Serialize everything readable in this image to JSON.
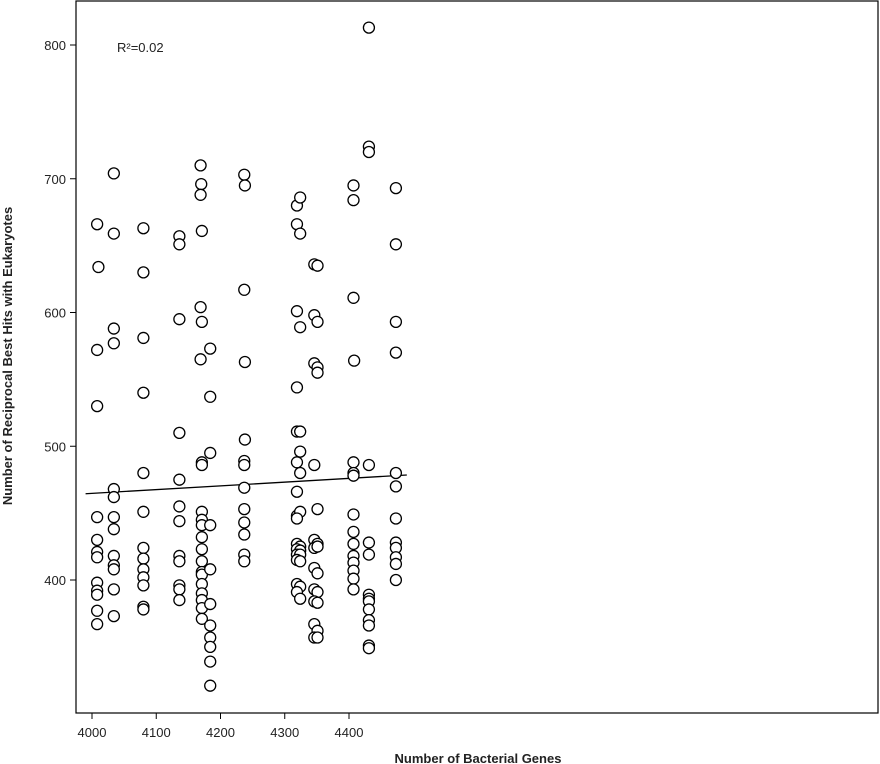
{
  "chart_data": {
    "type": "scatter",
    "title": "",
    "xlabel": "Number of Bacterial Genes",
    "ylabel": "Number of Reciprocal Best Hits with Eukaryotes",
    "xlim": [
      3990,
      4490
    ],
    "ylim": [
      300,
      830
    ],
    "x_ticks": [
      4000,
      4100,
      4200,
      4300,
      4400
    ],
    "y_ticks": [
      400,
      500,
      600,
      700,
      800
    ],
    "annotation": "R²=0.02",
    "grid": false,
    "marker": "open-circle",
    "trendline": {
      "x": [
        3990,
        4490
      ],
      "y": [
        464.5,
        478.5
      ]
    },
    "points": [
      [
        4008,
        666
      ],
      [
        4010,
        634
      ],
      [
        4008,
        572
      ],
      [
        4008,
        530
      ],
      [
        4008,
        447
      ],
      [
        4008,
        430
      ],
      [
        4008,
        421
      ],
      [
        4008,
        417
      ],
      [
        4008,
        398
      ],
      [
        4008,
        392
      ],
      [
        4008,
        389
      ],
      [
        4008,
        377
      ],
      [
        4008,
        367
      ],
      [
        4034,
        704
      ],
      [
        4034,
        659
      ],
      [
        4034,
        588
      ],
      [
        4034,
        577
      ],
      [
        4034,
        468
      ],
      [
        4034,
        462
      ],
      [
        4034,
        447
      ],
      [
        4034,
        438
      ],
      [
        4034,
        418
      ],
      [
        4034,
        411
      ],
      [
        4034,
        408
      ],
      [
        4034,
        393
      ],
      [
        4034,
        373
      ],
      [
        4080,
        663
      ],
      [
        4080,
        630
      ],
      [
        4080,
        581
      ],
      [
        4080,
        540
      ],
      [
        4080,
        480
      ],
      [
        4080,
        451
      ],
      [
        4080,
        424
      ],
      [
        4080,
        416
      ],
      [
        4080,
        408
      ],
      [
        4080,
        402
      ],
      [
        4080,
        396
      ],
      [
        4080,
        380
      ],
      [
        4080,
        378
      ],
      [
        4136,
        657
      ],
      [
        4136,
        651
      ],
      [
        4136,
        595
      ],
      [
        4136,
        510
      ],
      [
        4136,
        475
      ],
      [
        4136,
        455
      ],
      [
        4136,
        444
      ],
      [
        4136,
        418
      ],
      [
        4136,
        414
      ],
      [
        4136,
        396
      ],
      [
        4136,
        393
      ],
      [
        4136,
        385
      ],
      [
        4169,
        710
      ],
      [
        4170,
        696
      ],
      [
        4169,
        688
      ],
      [
        4171,
        661
      ],
      [
        4169,
        604
      ],
      [
        4171,
        593
      ],
      [
        4169,
        565
      ],
      [
        4171,
        488
      ],
      [
        4171,
        486
      ],
      [
        4171,
        451
      ],
      [
        4171,
        445
      ],
      [
        4171,
        441
      ],
      [
        4171,
        432
      ],
      [
        4171,
        423
      ],
      [
        4171,
        414
      ],
      [
        4171,
        406
      ],
      [
        4171,
        404
      ],
      [
        4171,
        397
      ],
      [
        4171,
        390
      ],
      [
        4171,
        385
      ],
      [
        4171,
        379
      ],
      [
        4171,
        371
      ],
      [
        4184,
        573
      ],
      [
        4184,
        537
      ],
      [
        4184,
        495
      ],
      [
        4184,
        441
      ],
      [
        4184,
        408
      ],
      [
        4184,
        382
      ],
      [
        4184,
        366
      ],
      [
        4184,
        357
      ],
      [
        4184,
        350
      ],
      [
        4184,
        339
      ],
      [
        4184,
        321
      ],
      [
        4237,
        703
      ],
      [
        4238,
        695
      ],
      [
        4237,
        617
      ],
      [
        4238,
        563
      ],
      [
        4238,
        505
      ],
      [
        4237,
        489
      ],
      [
        4237,
        486
      ],
      [
        4237,
        469
      ],
      [
        4237,
        453
      ],
      [
        4237,
        443
      ],
      [
        4237,
        434
      ],
      [
        4237,
        419
      ],
      [
        4237,
        414
      ],
      [
        4319,
        680
      ],
      [
        4324,
        686
      ],
      [
        4319,
        666
      ],
      [
        4324,
        659
      ],
      [
        4319,
        601
      ],
      [
        4324,
        589
      ],
      [
        4319,
        544
      ],
      [
        4319,
        511
      ],
      [
        4324,
        511
      ],
      [
        4319,
        488
      ],
      [
        4324,
        496
      ],
      [
        4324,
        480
      ],
      [
        4319,
        466
      ],
      [
        4319,
        448
      ],
      [
        4324,
        451
      ],
      [
        4319,
        446
      ],
      [
        4319,
        427
      ],
      [
        4324,
        425
      ],
      [
        4319,
        423
      ],
      [
        4324,
        422
      ],
      [
        4319,
        419
      ],
      [
        4324,
        419
      ],
      [
        4319,
        415
      ],
      [
        4324,
        414
      ],
      [
        4319,
        397
      ],
      [
        4324,
        395
      ],
      [
        4319,
        391
      ],
      [
        4324,
        386
      ],
      [
        4346,
        636
      ],
      [
        4351,
        635
      ],
      [
        4346,
        598
      ],
      [
        4351,
        593
      ],
      [
        4346,
        562
      ],
      [
        4351,
        559
      ],
      [
        4351,
        555
      ],
      [
        4346,
        486
      ],
      [
        4351,
        453
      ],
      [
        4346,
        430
      ],
      [
        4351,
        427
      ],
      [
        4346,
        424
      ],
      [
        4351,
        425
      ],
      [
        4346,
        409
      ],
      [
        4351,
        405
      ],
      [
        4346,
        393
      ],
      [
        4351,
        391
      ],
      [
        4346,
        384
      ],
      [
        4351,
        383
      ],
      [
        4346,
        367
      ],
      [
        4351,
        362
      ],
      [
        4346,
        357
      ],
      [
        4351,
        357
      ],
      [
        4407,
        695
      ],
      [
        4407,
        684
      ],
      [
        4407,
        611
      ],
      [
        4408,
        564
      ],
      [
        4407,
        488
      ],
      [
        4407,
        480
      ],
      [
        4407,
        478
      ],
      [
        4407,
        449
      ],
      [
        4407,
        436
      ],
      [
        4407,
        427
      ],
      [
        4407,
        418
      ],
      [
        4407,
        413
      ],
      [
        4407,
        407
      ],
      [
        4407,
        401
      ],
      [
        4407,
        393
      ],
      [
        4431,
        813
      ],
      [
        4431,
        724
      ],
      [
        4431,
        720
      ],
      [
        4431,
        486
      ],
      [
        4431,
        428
      ],
      [
        4431,
        419
      ],
      [
        4431,
        389
      ],
      [
        4431,
        386
      ],
      [
        4431,
        384
      ],
      [
        4431,
        378
      ],
      [
        4431,
        370
      ],
      [
        4431,
        366
      ],
      [
        4431,
        351
      ],
      [
        4431,
        349
      ],
      [
        4473,
        693
      ],
      [
        4473,
        651
      ],
      [
        4473,
        593
      ],
      [
        4473,
        570
      ],
      [
        4473,
        480
      ],
      [
        4473,
        470
      ],
      [
        4473,
        446
      ],
      [
        4473,
        428
      ],
      [
        4473,
        424
      ],
      [
        4473,
        417
      ],
      [
        4473,
        412
      ],
      [
        4473,
        400
      ]
    ]
  }
}
